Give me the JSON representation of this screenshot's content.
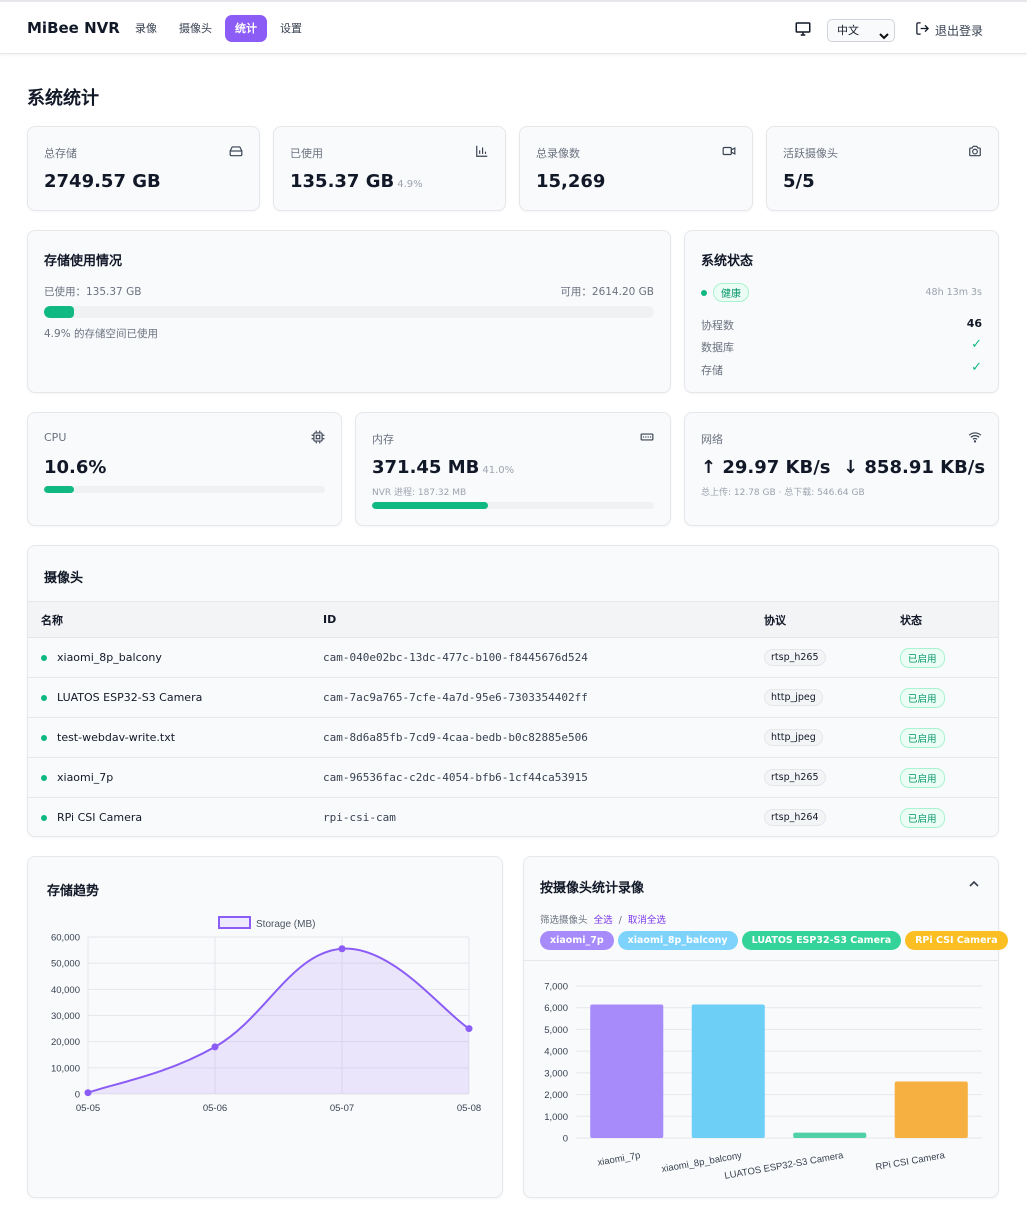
{
  "nav": {
    "brand": "MiBee NVR",
    "links": [
      "录像",
      "摄像头",
      "统计",
      "设置"
    ],
    "active": "统计",
    "language": "中文",
    "logout": "退出登录"
  },
  "page": {
    "title": "系统统计"
  },
  "stats": {
    "total_storage": {
      "label": "总存储",
      "value": "2749.57 GB",
      "icon": "hard-drive-icon"
    },
    "used": {
      "label": "已使用",
      "value": "135.37 GB",
      "sub": "4.9%",
      "icon": "bar-chart-icon"
    },
    "recordings": {
      "label": "总录像数",
      "value": "15,269",
      "icon": "video-icon"
    },
    "active_cameras": {
      "label": "活跃摄像头",
      "value": "5/5",
      "icon": "camera-icon"
    }
  },
  "storage_usage": {
    "title": "存储使用情况",
    "used_text": "已使用：135.37 GB",
    "available_text": "可用：2614.20 GB",
    "percent": 4.9,
    "caption": "4.9% 的存储空间已使用"
  },
  "system_status": {
    "title": "系统状态",
    "health": "健康",
    "uptime": "48h 13m 3s",
    "goroutines_label": "协程数",
    "goroutines_value": "46",
    "database_label": "数据库",
    "storage_label": "存储",
    "check": "✓"
  },
  "cpu": {
    "label": "CPU",
    "value": "10.6%",
    "percent": 10.6,
    "icon": "cpu-icon"
  },
  "memory": {
    "label": "内存",
    "value": "371.45 MB",
    "sub": "41.0%",
    "process": "NVR 进程: 187.32 MB",
    "percent": 41.0,
    "icon": "memory-icon"
  },
  "network": {
    "label": "网络",
    "up": "↑ 29.97 KB/s",
    "down": "↓ 858.91 KB/s",
    "totals": "总上传: 12.78 GB · 总下载: 546.64 GB",
    "icon": "wifi-icon"
  },
  "cameras": {
    "title": "摄像头",
    "headers": [
      "名称",
      "ID",
      "协议",
      "状态"
    ],
    "rows": [
      {
        "name": "xiaomi_8p_balcony",
        "id": "cam-040e02bc-13dc-477c-b100-f8445676d524",
        "protocol": "rtsp_h265",
        "status": "已启用"
      },
      {
        "name": "LUATOS ESP32-S3 Camera",
        "id": "cam-7ac9a765-7cfe-4a7d-95e6-7303354402ff",
        "protocol": "http_jpeg",
        "status": "已启用"
      },
      {
        "name": "test-webdav-write.txt",
        "id": "cam-8d6a85fb-7cd9-4caa-bedb-b0c82885e506",
        "protocol": "http_jpeg",
        "status": "已启用"
      },
      {
        "name": "xiaomi_7p",
        "id": "cam-96536fac-c2dc-4054-bfb6-1cf44ca53915",
        "protocol": "rtsp_h265",
        "status": "已启用"
      },
      {
        "name": "RPi CSI Camera",
        "id": "rpi-csi-cam",
        "protocol": "rtsp_h264",
        "status": "已启用"
      }
    ]
  },
  "storage_trend": {
    "title": "存储趋势",
    "chart_data": {
      "type": "area",
      "x": [
        "05-05",
        "05-06",
        "05-07",
        "05-08"
      ],
      "series": [
        {
          "name": "Storage (MB)",
          "values": [
            500,
            18000,
            55500,
            25000
          ]
        }
      ],
      "yticks": [
        "60,000",
        "50,000",
        "40,000",
        "30,000",
        "20,000",
        "10,000",
        "0"
      ],
      "ylim": [
        0,
        60000
      ],
      "legend": "top",
      "color": "#8b5cf6",
      "grid": true
    }
  },
  "by_camera": {
    "title": "按摄像头统计录像",
    "filter_label": "筛选摄像头",
    "select_all": "全选",
    "separator": "/",
    "deselect_all": "取消全选",
    "chips": [
      {
        "label": "xiaomi_7p",
        "color": "#a78bfa"
      },
      {
        "label": "xiaomi_8p_balcony",
        "color": "#7dd3fc"
      },
      {
        "label": "LUATOS ESP32-S3 Camera",
        "color": "#34d399"
      },
      {
        "label": "RPi CSI Camera",
        "color": "#fbbf24"
      }
    ],
    "chart_data": {
      "type": "bar",
      "categories": [
        "xiaomi_7p",
        "xiaomi_8p_balcony",
        "LUATOS ESP32-S3 Camera",
        "RPi CSI Camera"
      ],
      "values": [
        6150,
        6150,
        250,
        2600
      ],
      "colors": [
        "#a78bfa",
        "#6ecff6",
        "#4fd1a5",
        "#f5b041"
      ],
      "yticks": [
        "7,000",
        "6,000",
        "5,000",
        "4,000",
        "3,000",
        "2,000",
        "1,000",
        "0"
      ],
      "ylim": [
        0,
        7000
      ],
      "grid": true
    }
  }
}
